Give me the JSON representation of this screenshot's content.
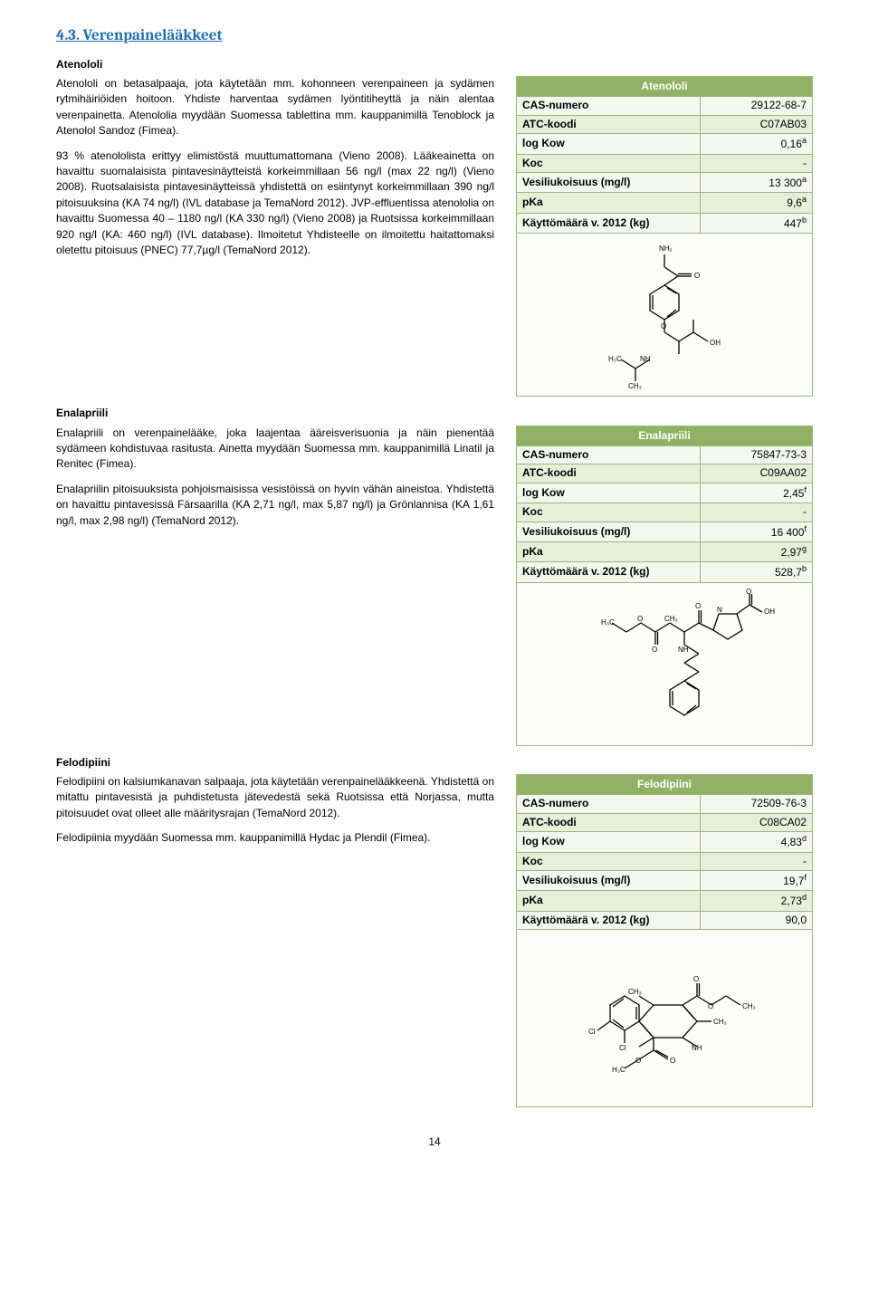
{
  "section": {
    "number": "4.3.",
    "title": "Verenpainelääkkeet"
  },
  "atenololi": {
    "heading": "Atenololi",
    "para1": "Atenololi on betasalpaaja, jota käytetään mm. kohonneen verenpaineen ja sydämen rytmihäiriöiden hoitoon. Yhdiste harventaa sydämen lyöntitiheyttä ja näin alentaa verenpainetta. Atenololia myydään Suomessa tablettina mm. kauppanimillä Tenoblock ja Atenolol Sandoz (Fimea).",
    "para2": "93 % atenololista erittyy elimistöstä muuttumattomana (Vieno 2008). Lääkeainetta on havaittu suomalaisista pintavesinäytteistä korkeimmillaan 56 ng/l (max 22 ng/l) (Vieno 2008). Ruotsalaisista pintavesinäytteissä yhdistettä on esiintynyt korkeimmillaan 390 ng/l pitoisuuksina (KA 74 ng/l) (IVL database ja TemaNord 2012). JVP-effluentissa atenololia on havaittu Suomessa 40 – 1180 ng/l (KA 330 ng/l) (Vieno 2008) ja Ruotsissa korkeimmillaan 920 ng/l (KA: 460 ng/l) (IVL database). Ilmoitetut Yhdisteelle on ilmoitettu haitattomaksi oletettu pitoisuus (PNEC) 77,7µg/l (TemaNord 2012).",
    "info": {
      "title": "Atenololi",
      "rows": [
        [
          "CAS-numero",
          "29122-68-7"
        ],
        [
          "ATC-koodi",
          "C07AB03"
        ],
        [
          "log Kow",
          "0,16<sup>a</sup>"
        ],
        [
          "Koc",
          "-"
        ],
        [
          "Vesiliukoisuus (mg/l)",
          "13 300<sup>a</sup>"
        ],
        [
          "pKa",
          "9,6<sup>a</sup>"
        ],
        [
          "Käyttömäärä v. 2012 (kg)",
          "447<sup>b</sup>"
        ]
      ]
    }
  },
  "enalapriili": {
    "heading": "Enalapriili",
    "para1": "Enalapriili on verenpainelääke, joka laajentaa ääreisverisuonia ja näin pienentää sydämeen kohdistuvaa rasitusta. Ainetta myydään Suomessa mm. kauppanimillä Linatil ja Renitec (Fimea).",
    "para2": "Enalapriilin pitoisuuksista pohjoismaisissa vesistöissä on hyvin vähän aineistoa. Yhdistettä on havaittu pintavesissä Färsaarilla (KA 2,71 ng/l, max 5,87 ng/l) ja Grönlannisa (KA 1,61 ng/l, max 2,98 ng/l) (TemaNord 2012).",
    "info": {
      "title": "Enalapriili",
      "rows": [
        [
          "CAS-numero",
          "75847-73-3"
        ],
        [
          "ATC-koodi",
          "C09AA02"
        ],
        [
          "log Kow",
          "2,45<sup>f</sup>"
        ],
        [
          "Koc",
          "-"
        ],
        [
          "Vesiliukoisuus (mg/l)",
          "16 400<sup>f</sup>"
        ],
        [
          "pKa",
          "2,97<sup>g</sup>"
        ],
        [
          "Käyttömäärä v. 2012 (kg)",
          "528,7<sup>b</sup>"
        ]
      ]
    }
  },
  "felodipiini": {
    "heading": "Felodipiini",
    "para1": "Felodipiini on kalsiumkanavan salpaaja, jota käytetään verenpainelääkkeenä. Yhdistettä on mitattu pintavesistä ja puhdistetusta jätevedestä sekä Ruotsissa että Norjassa, mutta pitoisuudet ovat olleet alle määritysrajan (TemaNord 2012).",
    "para2": "Felodipiinia myydään Suomessa mm. kauppanimillä Hydac ja Plendil (Fimea).",
    "info": {
      "title": "Felodipiini",
      "rows": [
        [
          "CAS-numero",
          "72509-76-3"
        ],
        [
          "ATC-koodi",
          "C08CA02"
        ],
        [
          "log Kow",
          "4,83<sup>d</sup>"
        ],
        [
          "Koc",
          "-"
        ],
        [
          "Vesiliukoisuus (mg/l)",
          "19,7<sup>f</sup>"
        ],
        [
          "pKa",
          "2,73<sup>d</sup>"
        ],
        [
          "Käyttömäärä v. 2012 (kg)",
          "90,0"
        ]
      ]
    }
  },
  "pageNumber": "14",
  "molecules": {
    "atenololi_labels": {
      "nh2": "NH₂",
      "o1": "O",
      "o2": "O",
      "oh": "OH",
      "nh": "NH",
      "h3c": "H₃C",
      "ch3": "CH₃"
    },
    "enalapriili_labels": {
      "oh": "OH",
      "n": "N",
      "o": "O",
      "nh": "NH",
      "h3c": "H₃C",
      "ch3": "CH₃"
    },
    "felodipiini_labels": {
      "cl": "Cl",
      "o": "O",
      "h3c": "H₃C",
      "ch3": "CH₃",
      "nh": "NH"
    }
  }
}
